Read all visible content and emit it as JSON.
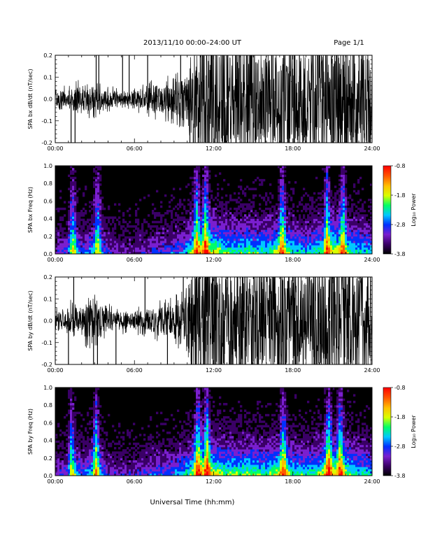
{
  "header": {
    "title": "2013/11/10   00:00–24:00 UT",
    "page": "Page 1/1"
  },
  "figure": {
    "xlabel": "Universal Time (hh:mm)",
    "colorbar_label": "Log₁₀ Power",
    "colorbar_ticks": [
      "-0.8",
      "-1.8",
      "-2.8",
      "-3.8"
    ],
    "colorbar_values": [
      -0.8,
      -1.8,
      -2.8,
      -3.8
    ],
    "colorbar_range": [
      -3.8,
      -0.8
    ],
    "x_ticks": [
      "00:00",
      "06:00",
      "12:00",
      "18:00",
      "24:00"
    ],
    "colors": {
      "waveform": "#000000",
      "spectrogram_background": "#000000",
      "colorbar_stops": [
        "#000000",
        "#3a0066",
        "#7a1fcf",
        "#0030ff",
        "#00c8ff",
        "#00ff66",
        "#d8ff00",
        "#ffc000",
        "#ff5a00",
        "#ff0000"
      ]
    }
  },
  "chart_data": [
    {
      "type": "line",
      "ylabel": "SPA bx dB/dt (nT/sec)",
      "x_unit": "hours UT",
      "xlim": [
        0,
        24
      ],
      "ylim": [
        -0.2,
        0.2
      ],
      "y_ticks": [
        "-0.2",
        "-0.1",
        "0.0",
        "0.1",
        "0.2"
      ],
      "amplitude_envelope": {
        "x": [
          0,
          1,
          1.5,
          2,
          3,
          3.5,
          4,
          5,
          6,
          7,
          7.5,
          8,
          9,
          9.5,
          10,
          10.5,
          11,
          12,
          13,
          14,
          15,
          16,
          17,
          18,
          19,
          20,
          21,
          22,
          23,
          24
        ],
        "y": [
          0.035,
          0.04,
          0.06,
          0.05,
          0.06,
          0.05,
          0.04,
          0.03,
          0.035,
          0.05,
          0.06,
          0.06,
          0.08,
          0.09,
          0.12,
          0.2,
          0.25,
          0.25,
          0.25,
          0.22,
          0.25,
          0.2,
          0.25,
          0.25,
          0.22,
          0.25,
          0.22,
          0.25,
          0.22,
          0.25
        ]
      },
      "spikes_x": [
        1.2,
        1.5,
        3.1,
        3.3,
        5.1,
        5.6,
        7.0,
        9.5,
        10.2,
        10.6,
        11.2,
        11.6,
        13.0,
        14.5,
        16.4,
        17.1,
        18.5,
        20.2,
        21.4,
        22.8,
        23.6
      ]
    },
    {
      "type": "heatmap",
      "ylabel": "SPA bx Freq (Hz)",
      "x_unit": "hours UT",
      "xlim": [
        0,
        24
      ],
      "ylim": [
        0.0,
        1.0
      ],
      "y_ticks": [
        "0.0",
        "0.2",
        "0.4",
        "0.6",
        "0.8",
        "1.0"
      ],
      "z_label": "Log₁₀ Power",
      "zlim": [
        -3.8,
        -0.8
      ],
      "activity": {
        "x": [
          0,
          1,
          1.5,
          2,
          3,
          3.5,
          4,
          5,
          6,
          7,
          7.5,
          8,
          9,
          9.5,
          10,
          10.5,
          11,
          12,
          13,
          14,
          15,
          16,
          17,
          18,
          19,
          20,
          21,
          22,
          23,
          24
        ],
        "y": [
          0.3,
          0.35,
          0.6,
          0.35,
          0.55,
          0.5,
          0.3,
          0.25,
          0.25,
          0.3,
          0.35,
          0.35,
          0.4,
          0.45,
          0.55,
          0.7,
          0.85,
          0.8,
          0.65,
          0.65,
          0.65,
          0.6,
          0.75,
          0.6,
          0.55,
          0.65,
          0.85,
          0.7,
          0.6,
          0.55
        ]
      },
      "bursts_x": [
        1.3,
        3.2,
        10.7,
        11.4,
        17.2,
        20.6,
        21.8
      ]
    },
    {
      "type": "line",
      "ylabel": "SPA by dB/dt (nT/sec)",
      "x_unit": "hours UT",
      "xlim": [
        0,
        24
      ],
      "ylim": [
        -0.2,
        0.2
      ],
      "y_ticks": [
        "-0.2",
        "-0.1",
        "0.0",
        "0.1",
        "0.2"
      ],
      "amplitude_envelope": {
        "x": [
          0,
          1,
          1.5,
          2,
          3,
          3.5,
          4,
          5,
          6,
          7,
          7.5,
          8,
          9,
          9.5,
          10,
          10.5,
          11,
          12,
          13,
          14,
          15,
          16,
          17,
          18,
          19,
          20,
          21,
          22,
          23,
          24
        ],
        "y": [
          0.04,
          0.05,
          0.09,
          0.07,
          0.09,
          0.06,
          0.05,
          0.04,
          0.04,
          0.05,
          0.06,
          0.06,
          0.07,
          0.09,
          0.12,
          0.25,
          0.25,
          0.25,
          0.25,
          0.25,
          0.25,
          0.22,
          0.25,
          0.25,
          0.22,
          0.25,
          0.25,
          0.25,
          0.22,
          0.25
        ]
      },
      "spikes_x": [
        1.0,
        1.4,
        2.9,
        3.2,
        4.6,
        6.8,
        8.5,
        9.7,
        10.3,
        10.9,
        11.5,
        12.8,
        14.2,
        15.6,
        16.9,
        18.2,
        19.6,
        20.8,
        22.1,
        23.4
      ]
    },
    {
      "type": "heatmap",
      "ylabel": "SPA by Freq (Hz)",
      "x_unit": "hours UT",
      "xlim": [
        0,
        24
      ],
      "ylim": [
        0.0,
        1.0
      ],
      "y_ticks": [
        "0.0",
        "0.2",
        "0.4",
        "0.6",
        "0.8",
        "1.0"
      ],
      "z_label": "Log₁₀ Power",
      "zlim": [
        -3.8,
        -0.8
      ],
      "activity": {
        "x": [
          0,
          1,
          1.5,
          2,
          3,
          3.5,
          4,
          5,
          6,
          7,
          7.5,
          8,
          9,
          9.5,
          10,
          10.5,
          11,
          12,
          13,
          14,
          15,
          16,
          17,
          18,
          19,
          20,
          21,
          22,
          23,
          24
        ],
        "y": [
          0.3,
          0.35,
          0.6,
          0.4,
          0.6,
          0.5,
          0.3,
          0.3,
          0.3,
          0.35,
          0.4,
          0.4,
          0.45,
          0.5,
          0.6,
          0.75,
          0.9,
          0.8,
          0.7,
          0.7,
          0.7,
          0.65,
          0.8,
          0.65,
          0.6,
          0.7,
          0.9,
          0.75,
          0.6,
          0.55
        ]
      },
      "bursts_x": [
        1.2,
        3.1,
        10.8,
        11.5,
        17.3,
        20.7,
        21.6
      ]
    }
  ]
}
